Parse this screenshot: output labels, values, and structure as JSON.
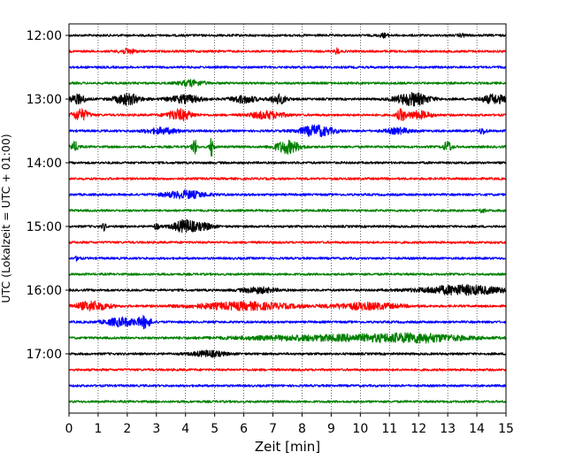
{
  "chart_data": {
    "type": "line",
    "xlabel": "Zeit  [min]",
    "ylabel": "UTC (Lokalzeit = UTC + 01:00)",
    "xlim": [
      0,
      15
    ],
    "x_ticks": [
      0,
      1,
      2,
      3,
      4,
      5,
      6,
      7,
      8,
      9,
      10,
      11,
      12,
      13,
      14,
      15
    ],
    "y_ticks": [
      "12:00",
      "13:00",
      "14:00",
      "15:00",
      "16:00",
      "17:00"
    ],
    "vertical_gridlines": "dotted",
    "colors": [
      "#000000",
      "#ff0000",
      "#0000ff",
      "#008000"
    ],
    "traces": [
      {
        "start": "12:00",
        "color": "#000000",
        "events": [
          [
            10.8,
            0.12,
            2
          ],
          [
            13.5,
            0.1,
            1.5
          ]
        ]
      },
      {
        "start": "12:15",
        "color": "#ff0000",
        "events": [
          [
            2.0,
            0.2,
            2.5
          ],
          [
            9.2,
            0.05,
            3.5
          ]
        ]
      },
      {
        "start": "12:30",
        "color": "#0000ff",
        "events": []
      },
      {
        "start": "12:45",
        "color": "#008000",
        "events": [
          [
            4.2,
            0.3,
            3
          ]
        ]
      },
      {
        "start": "13:00",
        "color": "#000000",
        "events": [
          [
            0.3,
            0.2,
            5
          ],
          [
            2.0,
            0.3,
            6
          ],
          [
            4.0,
            0.4,
            4
          ],
          [
            6.0,
            0.3,
            4
          ],
          [
            7.2,
            0.2,
            5
          ],
          [
            11.8,
            0.4,
            7
          ],
          [
            14.6,
            0.3,
            5
          ]
        ]
      },
      {
        "start": "13:15",
        "color": "#ff0000",
        "events": [
          [
            0.4,
            0.2,
            6
          ],
          [
            3.8,
            0.3,
            6
          ],
          [
            6.8,
            0.4,
            4
          ],
          [
            11.4,
            0.1,
            6
          ],
          [
            12.0,
            0.3,
            4
          ]
        ]
      },
      {
        "start": "13:30",
        "color": "#0000ff",
        "events": [
          [
            3.2,
            0.4,
            3
          ],
          [
            8.5,
            0.4,
            6
          ],
          [
            11.3,
            0.3,
            3
          ],
          [
            14.2,
            0.1,
            3
          ]
        ]
      },
      {
        "start": "13:45",
        "color": "#008000",
        "events": [
          [
            0.2,
            0.1,
            5
          ],
          [
            4.3,
            0.05,
            11
          ],
          [
            4.9,
            0.05,
            11
          ],
          [
            7.5,
            0.3,
            7
          ],
          [
            13.0,
            0.1,
            6
          ]
        ]
      },
      {
        "start": "14:00",
        "color": "#000000",
        "events": []
      },
      {
        "start": "14:15",
        "color": "#ff0000",
        "events": []
      },
      {
        "start": "14:30",
        "color": "#0000ff",
        "events": [
          [
            4.0,
            0.5,
            4
          ]
        ]
      },
      {
        "start": "14:45",
        "color": "#008000",
        "events": [
          [
            14.2,
            0.05,
            3.5
          ]
        ]
      },
      {
        "start": "15:00",
        "color": "#000000",
        "events": [
          [
            1.2,
            0.05,
            4
          ],
          [
            3.0,
            0.05,
            4
          ],
          [
            4.0,
            0.3,
            7
          ],
          [
            4.7,
            0.2,
            3
          ]
        ]
      },
      {
        "start": "15:15",
        "color": "#ff0000",
        "events": []
      },
      {
        "start": "15:30",
        "color": "#0000ff",
        "events": [
          [
            0.3,
            0.05,
            3
          ]
        ]
      },
      {
        "start": "15:45",
        "color": "#008000",
        "events": []
      },
      {
        "start": "16:00",
        "color": "#000000",
        "events": [
          [
            6.5,
            0.4,
            3
          ],
          [
            13.5,
            1.0,
            5
          ]
        ]
      },
      {
        "start": "16:15",
        "color": "#ff0000",
        "events": [
          [
            0.8,
            0.4,
            5
          ],
          [
            6.0,
            1.2,
            4
          ],
          [
            10.2,
            0.8,
            3.5
          ]
        ]
      },
      {
        "start": "16:30",
        "color": "#0000ff",
        "events": [
          [
            1.8,
            0.4,
            4.5
          ],
          [
            2.6,
            0.15,
            6
          ]
        ]
      },
      {
        "start": "16:45",
        "color": "#008000",
        "events": [
          [
            9.5,
            2.5,
            3
          ],
          [
            12.0,
            1.0,
            3
          ]
        ]
      },
      {
        "start": "17:00",
        "color": "#000000",
        "events": [
          [
            4.8,
            0.4,
            3
          ]
        ]
      },
      {
        "start": "17:15",
        "color": "#ff0000",
        "events": []
      },
      {
        "start": "17:30",
        "color": "#0000ff",
        "events": []
      },
      {
        "start": "17:45",
        "color": "#008000",
        "events": []
      }
    ]
  }
}
